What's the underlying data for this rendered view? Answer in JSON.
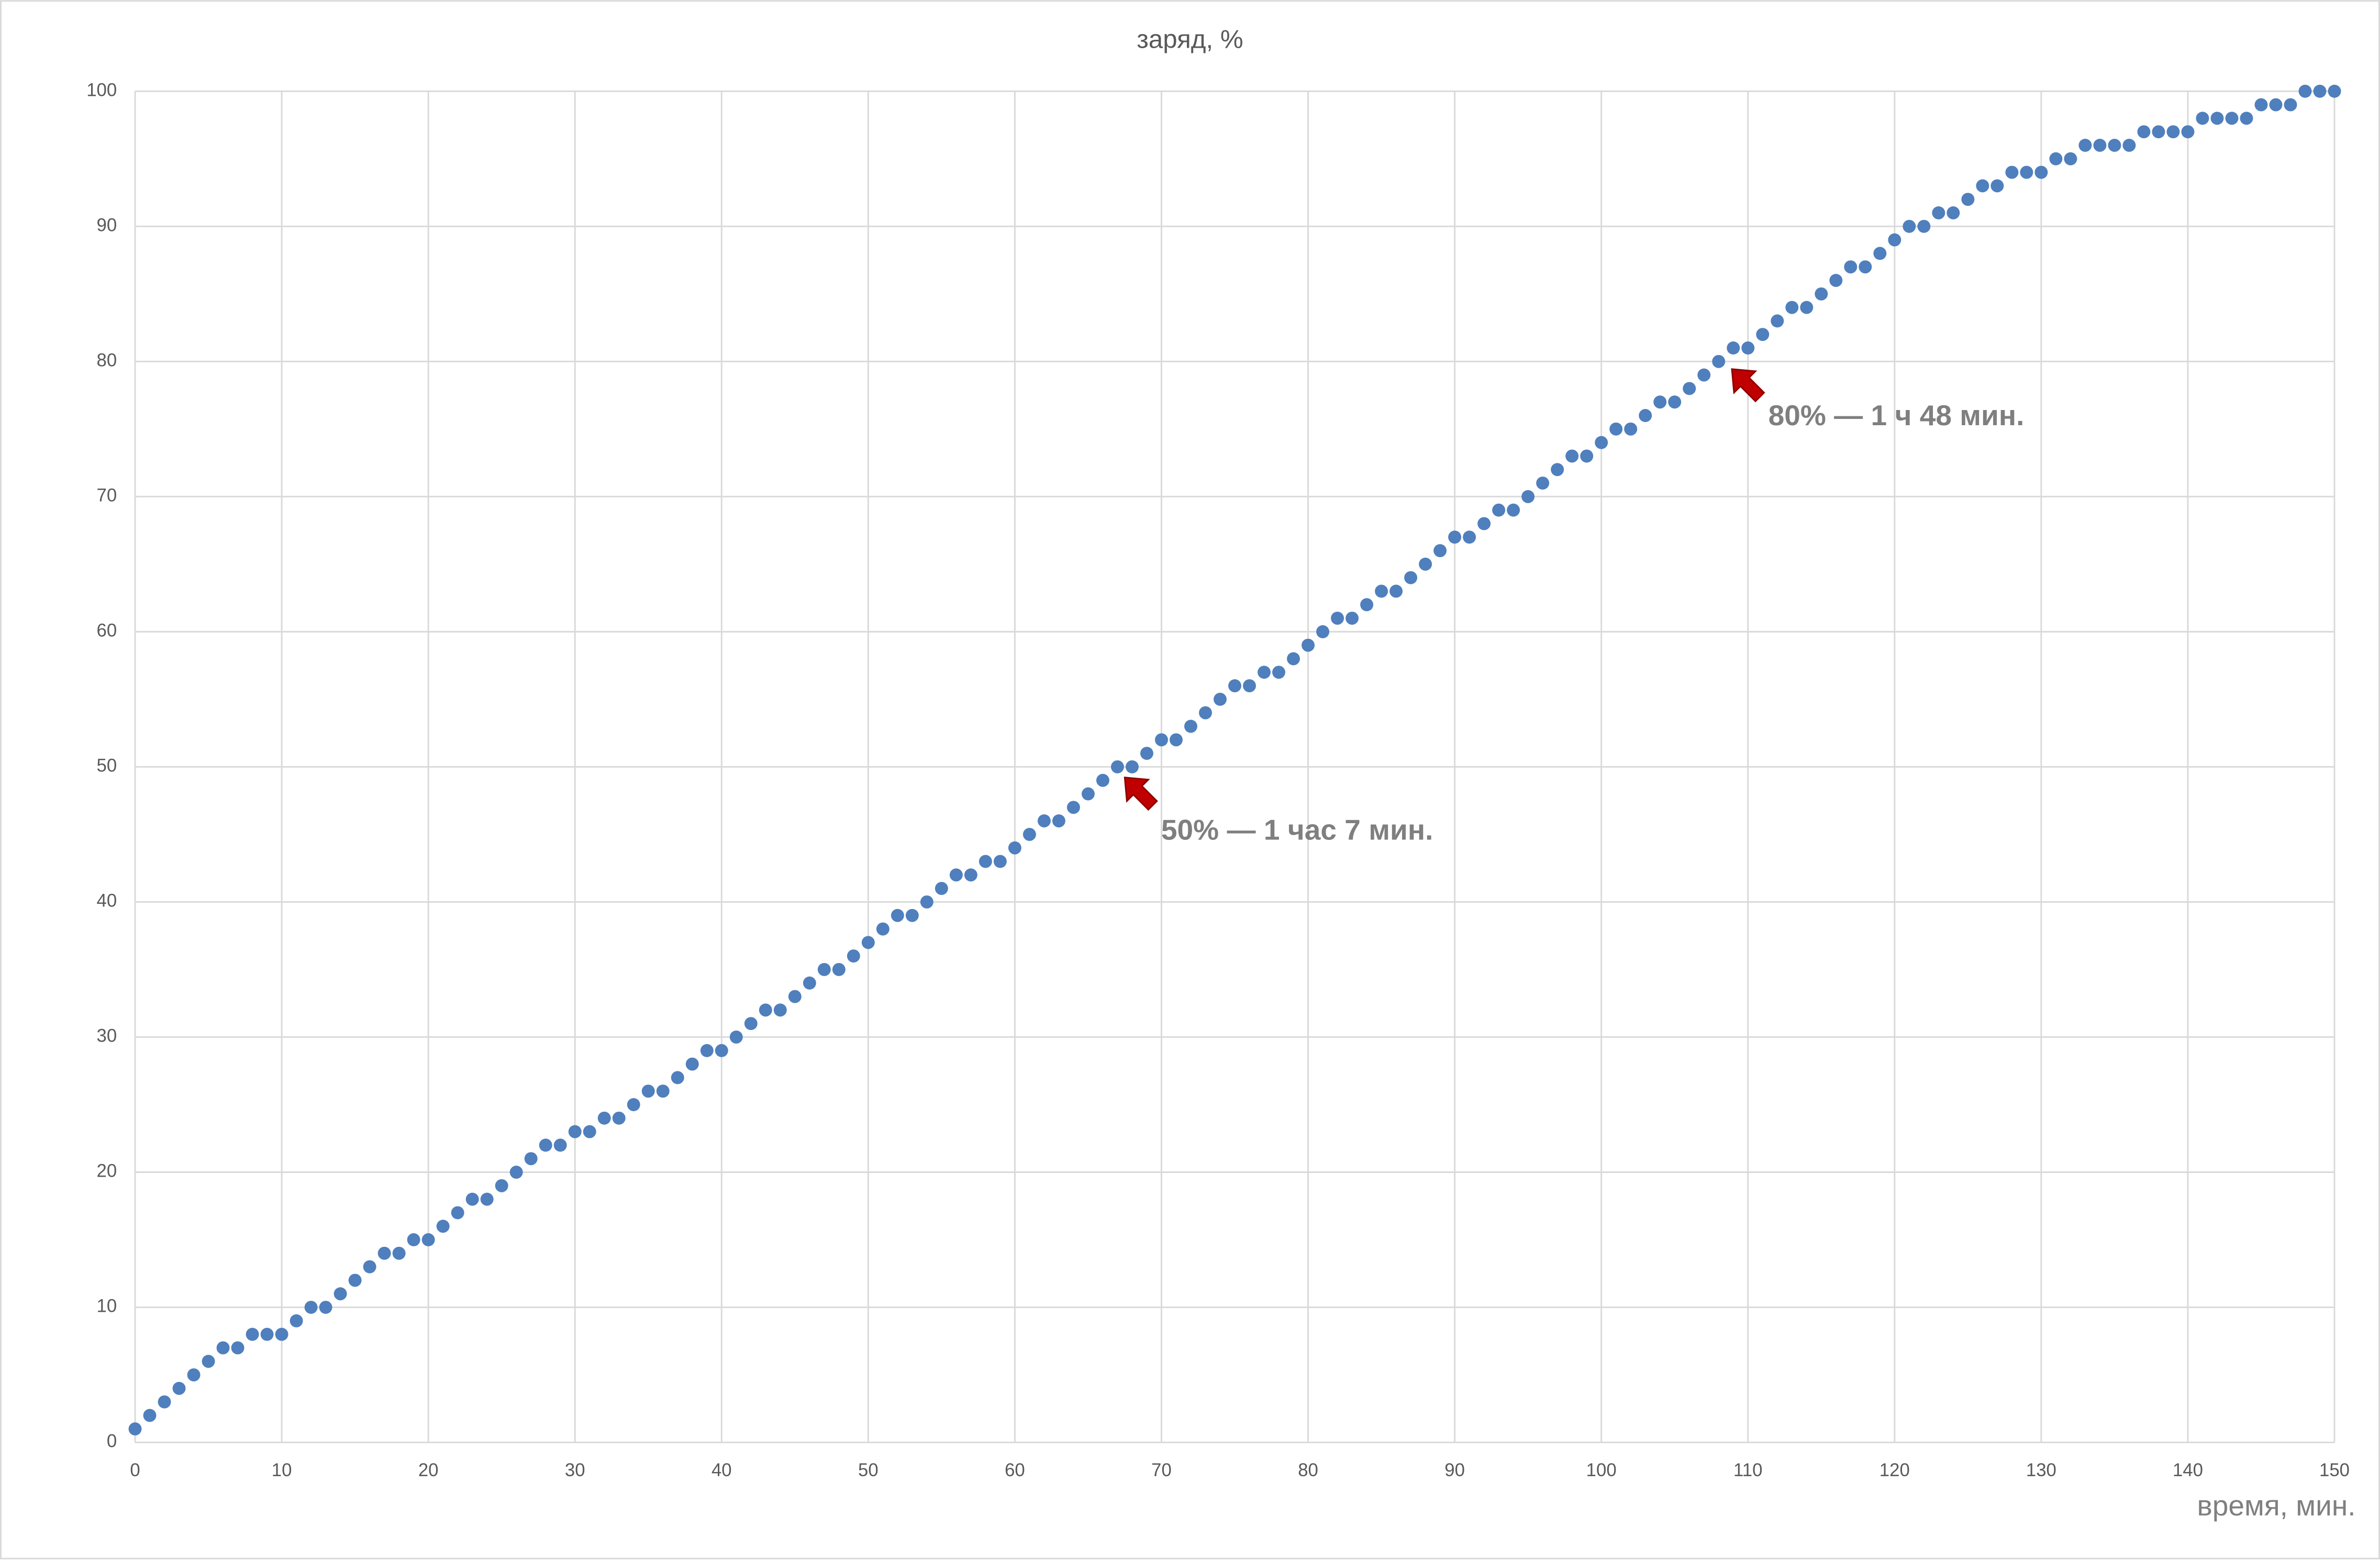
{
  "chart_data": {
    "type": "scatter",
    "title": "заряд, %",
    "x_label": "время, мин.",
    "x": [
      0,
      1,
      2,
      3,
      4,
      5,
      6,
      7,
      8,
      9,
      10,
      11,
      12,
      13,
      14,
      15,
      16,
      17,
      18,
      19,
      20,
      21,
      22,
      23,
      24,
      25,
      26,
      27,
      28,
      29,
      30,
      31,
      32,
      33,
      34,
      35,
      36,
      37,
      38,
      39,
      40,
      41,
      42,
      43,
      44,
      45,
      46,
      47,
      48,
      49,
      50,
      51,
      52,
      53,
      54,
      55,
      56,
      57,
      58,
      59,
      60,
      61,
      62,
      63,
      64,
      65,
      66,
      67,
      68,
      69,
      70,
      71,
      72,
      73,
      74,
      75,
      76,
      77,
      78,
      79,
      80,
      81,
      82,
      83,
      84,
      85,
      86,
      87,
      88,
      89,
      90,
      91,
      92,
      93,
      94,
      95,
      96,
      97,
      98,
      99,
      100,
      101,
      102,
      103,
      104,
      105,
      106,
      107,
      108,
      109,
      110,
      111,
      112,
      113,
      114,
      115,
      116,
      117,
      118,
      119,
      120,
      121,
      122,
      123,
      124,
      125,
      126,
      127,
      128,
      129,
      130,
      131,
      132,
      133,
      134,
      135,
      136,
      137,
      138,
      139,
      140,
      141,
      142,
      143,
      144,
      145,
      146,
      147,
      148,
      149,
      150
    ],
    "values": [
      1,
      2,
      3,
      4,
      5,
      6,
      7,
      7,
      8,
      8,
      8,
      9,
      10,
      10,
      11,
      12,
      13,
      14,
      14,
      15,
      15,
      16,
      17,
      18,
      18,
      19,
      20,
      21,
      22,
      22,
      23,
      23,
      24,
      24,
      25,
      26,
      26,
      27,
      28,
      29,
      29,
      30,
      31,
      32,
      32,
      33,
      34,
      35,
      35,
      36,
      37,
      38,
      39,
      39,
      40,
      41,
      42,
      42,
      43,
      43,
      44,
      45,
      46,
      46,
      47,
      48,
      49,
      50,
      50,
      51,
      52,
      52,
      53,
      54,
      55,
      56,
      56,
      57,
      57,
      58,
      59,
      60,
      61,
      61,
      62,
      63,
      63,
      64,
      65,
      66,
      67,
      67,
      68,
      69,
      69,
      70,
      71,
      72,
      73,
      73,
      74,
      75,
      75,
      76,
      77,
      77,
      78,
      79,
      80,
      81,
      81,
      82,
      83,
      84,
      84,
      85,
      86,
      87,
      87,
      88,
      89,
      90,
      90,
      91,
      91,
      92,
      93,
      93,
      94,
      94,
      94,
      95,
      95,
      96,
      96,
      96,
      96,
      97,
      97,
      97,
      97,
      98,
      98,
      98,
      98,
      99,
      99,
      99,
      100,
      100,
      100
    ],
    "color": "#4f7fbd",
    "xlim": [
      0,
      150
    ],
    "xticks": [
      0,
      10,
      20,
      30,
      40,
      50,
      60,
      70,
      80,
      90,
      100,
      110,
      120,
      130,
      140,
      150
    ],
    "ylim": [
      0,
      100
    ],
    "yticks": [
      0,
      10,
      20,
      30,
      40,
      50,
      60,
      70,
      80,
      90,
      100
    ],
    "grid": true,
    "annotations": [
      "50% — 1 час 7 мин.",
      "80% — 1 ч 48 мин."
    ]
  }
}
